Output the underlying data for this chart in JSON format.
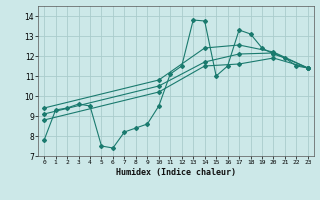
{
  "xlabel": "Humidex (Indice chaleur)",
  "bg_color": "#cce8e8",
  "grid_color": "#aacccc",
  "line_color": "#1a7a6e",
  "xlim": [
    -0.5,
    23.5
  ],
  "ylim": [
    7,
    14.5
  ],
  "yticks": [
    7,
    8,
    9,
    10,
    11,
    12,
    13,
    14
  ],
  "xticks": [
    0,
    1,
    2,
    3,
    4,
    5,
    6,
    7,
    8,
    9,
    10,
    11,
    12,
    13,
    14,
    15,
    16,
    17,
    18,
    19,
    20,
    21,
    22,
    23
  ],
  "lines": [
    {
      "x": [
        0,
        1,
        2,
        3,
        4,
        5,
        6,
        7,
        8,
        9,
        10,
        11,
        12,
        13,
        14,
        15,
        16,
        17,
        18,
        19,
        20,
        21,
        22,
        23
      ],
      "y": [
        7.8,
        9.3,
        9.4,
        9.6,
        9.5,
        7.5,
        7.4,
        8.2,
        8.4,
        8.6,
        9.5,
        11.1,
        11.5,
        13.8,
        13.75,
        11.0,
        11.5,
        13.3,
        13.1,
        12.4,
        12.1,
        11.9,
        11.5,
        11.4
      ]
    },
    {
      "x": [
        0,
        10,
        14,
        17,
        20,
        23
      ],
      "y": [
        8.8,
        10.2,
        11.5,
        11.6,
        11.9,
        11.4
      ]
    },
    {
      "x": [
        0,
        10,
        14,
        17,
        20,
        23
      ],
      "y": [
        9.1,
        10.5,
        11.7,
        12.1,
        12.15,
        11.4
      ]
    },
    {
      "x": [
        0,
        10,
        14,
        17,
        20,
        23
      ],
      "y": [
        9.4,
        10.8,
        12.4,
        12.55,
        12.2,
        11.4
      ]
    }
  ]
}
